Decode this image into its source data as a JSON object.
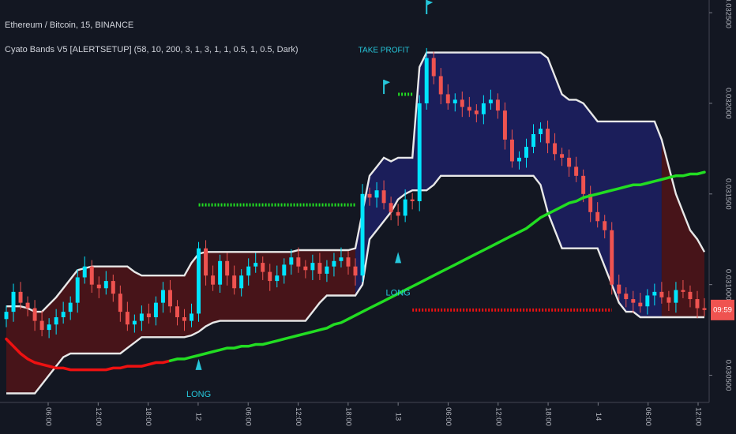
{
  "chart_data": {
    "type": "line",
    "title": "Ethereum / Bitcoin, 15, BINANCE",
    "indicator": "Cyato Bands V5 [ALERTSETUP] (58, 10, 200, 3, 1, 3, 1, 1, 0.5, 1, 0.5, Dark)",
    "colors": {
      "background": "#131722",
      "candle_up": "#00e5ff",
      "candle_down": "#ef5350",
      "band_line": "#e8e8e8",
      "band_fill_bear": "#4a1419",
      "band_fill_bull": "#1b1f5e",
      "ma_bull": "#22dd22",
      "ma_bear": "#ee1111",
      "signal": "#26c6da",
      "price_badge": "#ef5350"
    },
    "x_ticks": [
      "06:00",
      "12:00",
      "18:00",
      "12",
      "06:00",
      "12:00",
      "18:00",
      "13",
      "06:00",
      "12:00",
      "18:00",
      "14",
      "06:00",
      "12:00"
    ],
    "y_ticks": [
      "0.032500",
      "0.032000",
      "0.031500",
      "0.031000",
      "0.030500"
    ],
    "ylim": [
      0.03035,
      0.03257
    ],
    "current_price": {
      "value": 0.03086,
      "label": "09:59"
    },
    "signals": {
      "long_1": "LONG",
      "long_2": "LONG",
      "take_profit": "TAKE PROFIT"
    },
    "close": [
      0.03085,
      0.03096,
      0.0309,
      0.03087,
      0.0308,
      0.03075,
      0.03078,
      0.03082,
      0.03085,
      0.0309,
      0.03104,
      0.0311,
      0.031,
      0.03098,
      0.03102,
      0.03095,
      0.03085,
      0.03078,
      0.0308,
      0.03084,
      0.03082,
      0.0309,
      0.03097,
      0.03088,
      0.03082,
      0.0308,
      0.03084,
      0.0312,
      0.03105,
      0.031,
      0.03113,
      0.03105,
      0.03098,
      0.03105,
      0.0311,
      0.03112,
      0.03107,
      0.03102,
      0.03105,
      0.03111,
      0.03115,
      0.0311,
      0.03108,
      0.03112,
      0.03106,
      0.0311,
      0.03113,
      0.03115,
      0.0311,
      0.03105,
      0.0315,
      0.03148,
      0.03152,
      0.03145,
      0.0314,
      0.03138,
      0.03147,
      0.03146,
      0.032,
      0.03225,
      0.03215,
      0.03205,
      0.032,
      0.03202,
      0.03198,
      0.03196,
      0.03194,
      0.032,
      0.03202,
      0.03196,
      0.0318,
      0.03168,
      0.0317,
      0.03176,
      0.03183,
      0.03186,
      0.03178,
      0.03172,
      0.0317,
      0.03165,
      0.0316,
      0.0315,
      0.0314,
      0.03135,
      0.0313,
      0.031,
      0.03095,
      0.03092,
      0.0309,
      0.03088,
      0.03094,
      0.03096,
      0.03093,
      0.0309,
      0.03097,
      0.03096,
      0.03092,
      0.03087,
      0.03086
    ],
    "upper_band": [
      0.03088,
      0.03088,
      0.03088,
      0.03087,
      0.03085,
      0.03085,
      0.03089,
      0.03093,
      0.03098,
      0.03103,
      0.03108,
      0.03109,
      0.0311,
      0.0311,
      0.0311,
      0.0311,
      0.0311,
      0.0311,
      0.03107,
      0.03105,
      0.03105,
      0.03105,
      0.03105,
      0.03105,
      0.03105,
      0.03105,
      0.03112,
      0.03117,
      0.03118,
      0.03118,
      0.03118,
      0.03118,
      0.03118,
      0.03118,
      0.03118,
      0.03118,
      0.03118,
      0.03118,
      0.03118,
      0.03118,
      0.03118,
      0.03119,
      0.03119,
      0.03119,
      0.03119,
      0.03119,
      0.03119,
      0.03119,
      0.03119,
      0.0312,
      0.0314,
      0.0316,
      0.03165,
      0.0317,
      0.03168,
      0.0317,
      0.0317,
      0.0317,
      0.0322,
      0.03228,
      0.03228,
      0.03228,
      0.03228,
      0.03228,
      0.03228,
      0.03228,
      0.03228,
      0.03228,
      0.03228,
      0.03228,
      0.03228,
      0.03228,
      0.03228,
      0.03228,
      0.03228,
      0.03228,
      0.03225,
      0.03215,
      0.03205,
      0.03202,
      0.03202,
      0.032,
      0.03195,
      0.0319,
      0.0319,
      0.0319,
      0.0319,
      0.0319,
      0.0319,
      0.0319,
      0.0319,
      0.0319,
      0.0318,
      0.03165,
      0.0315,
      0.0314,
      0.0313,
      0.03125,
      0.03118
    ],
    "lower_band": [
      0.0304,
      0.0304,
      0.0304,
      0.0304,
      0.0304,
      0.03045,
      0.0305,
      0.03055,
      0.0306,
      0.03062,
      0.03062,
      0.03062,
      0.03062,
      0.03062,
      0.03062,
      0.03062,
      0.03062,
      0.03065,
      0.03068,
      0.03071,
      0.03071,
      0.03071,
      0.03071,
      0.03071,
      0.03071,
      0.03071,
      0.03072,
      0.03074,
      0.03077,
      0.03079,
      0.0308,
      0.0308,
      0.0308,
      0.0308,
      0.0308,
      0.0308,
      0.0308,
      0.0308,
      0.0308,
      0.0308,
      0.0308,
      0.0308,
      0.0308,
      0.03085,
      0.0309,
      0.03094,
      0.03094,
      0.03094,
      0.03094,
      0.03094,
      0.031,
      0.03125,
      0.0313,
      0.03135,
      0.0314,
      0.03147,
      0.0315,
      0.03152,
      0.03152,
      0.03152,
      0.03155,
      0.0316,
      0.0316,
      0.0316,
      0.0316,
      0.0316,
      0.0316,
      0.0316,
      0.0316,
      0.0316,
      0.0316,
      0.0316,
      0.0316,
      0.0316,
      0.0316,
      0.03155,
      0.0314,
      0.0313,
      0.0312,
      0.0312,
      0.0312,
      0.0312,
      0.0312,
      0.0312,
      0.0311,
      0.031,
      0.0309,
      0.03085,
      0.03085,
      0.03082,
      0.03082,
      0.03082,
      0.03082,
      0.03082,
      0.03082,
      0.03082,
      0.03082,
      0.03082,
      0.03082
    ],
    "ma": [
      0.0307,
      0.03066,
      0.03062,
      0.03059,
      0.03057,
      0.03056,
      0.03055,
      0.03054,
      0.03054,
      0.03053,
      0.03053,
      0.03053,
      0.03053,
      0.03053,
      0.03053,
      0.03054,
      0.03054,
      0.03055,
      0.03055,
      0.03055,
      0.03056,
      0.03057,
      0.03057,
      0.03058,
      0.03059,
      0.03059,
      0.0306,
      0.03061,
      0.03062,
      0.03063,
      0.03064,
      0.03065,
      0.03065,
      0.03066,
      0.03066,
      0.03067,
      0.03067,
      0.03068,
      0.03069,
      0.0307,
      0.03071,
      0.03072,
      0.03073,
      0.03074,
      0.03075,
      0.03076,
      0.03078,
      0.03079,
      0.03081,
      0.03083,
      0.03085,
      0.03087,
      0.03089,
      0.03091,
      0.03093,
      0.03095,
      0.03097,
      0.03099,
      0.03101,
      0.03103,
      0.03105,
      0.03107,
      0.03109,
      0.03111,
      0.03113,
      0.03115,
      0.03117,
      0.03119,
      0.03121,
      0.03123,
      0.03125,
      0.03127,
      0.03129,
      0.03131,
      0.03134,
      0.03137,
      0.03139,
      0.03141,
      0.03143,
      0.03145,
      0.03146,
      0.03148,
      0.03149,
      0.0315,
      0.03151,
      0.03152,
      0.03153,
      0.03154,
      0.03155,
      0.03155,
      0.03156,
      0.03157,
      0.03158,
      0.03159,
      0.0316,
      0.0316,
      0.03161,
      0.03161,
      0.03162
    ],
    "ma_color": [
      "r",
      "r",
      "r",
      "r",
      "r",
      "r",
      "r",
      "r",
      "r",
      "r",
      "r",
      "r",
      "r",
      "r",
      "r",
      "r",
      "r",
      "r",
      "r",
      "r",
      "r",
      "r",
      "r",
      "g",
      "g",
      "g",
      "g",
      "g",
      "g",
      "g",
      "g",
      "g",
      "g",
      "g",
      "g",
      "g",
      "g",
      "g",
      "g",
      "g",
      "g",
      "g",
      "g",
      "g",
      "g",
      "g",
      "g",
      "g",
      "g",
      "g",
      "g",
      "g",
      "g",
      "g",
      "g",
      "g",
      "g",
      "g",
      "g",
      "g",
      "g",
      "g",
      "g",
      "g",
      "g",
      "g",
      "g",
      "g",
      "g",
      "g",
      "g",
      "g",
      "g",
      "g",
      "g",
      "g",
      "g",
      "g",
      "g",
      "g",
      "g",
      "g",
      "g",
      "g",
      "g",
      "g",
      "g",
      "g",
      "g",
      "g",
      "g",
      "g",
      "g",
      "g",
      "g",
      "g",
      "g",
      "g",
      "g"
    ],
    "regime": [
      "bear",
      "bear",
      "bear",
      "bear",
      "bear",
      "bear",
      "bear",
      "bear",
      "bear",
      "bear",
      "bear",
      "bear",
      "bear",
      "bear",
      "bear",
      "bear",
      "bear",
      "bear",
      "bear",
      "bear",
      "bear",
      "bear",
      "bear",
      "bear",
      "bear",
      "bear",
      "bear",
      "bear",
      "bear",
      "bear",
      "bear",
      "bear",
      "bear",
      "bear",
      "bear",
      "bear",
      "bear",
      "bear",
      "bear",
      "bear",
      "bear",
      "bear",
      "bear",
      "bear",
      "bear",
      "bear",
      "bear",
      "bear",
      "bear",
      "bull",
      "bull",
      "bull",
      "bull",
      "bull",
      "bull",
      "bull",
      "bull",
      "bull",
      "bull",
      "bull",
      "bull",
      "bull",
      "bull",
      "bull",
      "bull",
      "bull",
      "bull",
      "bull",
      "bull",
      "bull",
      "bull",
      "bull",
      "bull",
      "bull",
      "bull",
      "bull",
      "bull",
      "bull",
      "bull",
      "bull",
      "bull",
      "bull",
      "bull",
      "bull",
      "bull",
      "bull",
      "bull",
      "bull",
      "bull",
      "bull",
      "bull",
      "bull",
      "bear",
      "bear",
      "bear",
      "bear",
      "bear",
      "bear",
      "bear"
    ],
    "levels": [
      {
        "name": "green-target",
        "value": 0.03144,
        "from": 27,
        "to": 49,
        "color": "#22dd22"
      },
      {
        "name": "green-tp",
        "value": 0.03205,
        "from": 55,
        "to": 57,
        "color": "#22dd22"
      },
      {
        "name": "red-stop",
        "value": 0.03086,
        "from": 57,
        "to": 85,
        "color": "#ee1111"
      }
    ]
  }
}
